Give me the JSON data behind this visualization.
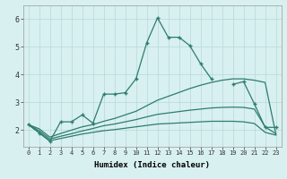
{
  "xlabel": "Humidex (Indice chaleur)",
  "x_values": [
    0,
    1,
    2,
    3,
    4,
    5,
    6,
    7,
    8,
    9,
    10,
    11,
    12,
    13,
    14,
    15,
    16,
    17,
    18,
    19,
    20,
    21,
    22,
    23
  ],
  "line_main": [
    2.2,
    1.9,
    1.6,
    2.3,
    2.3,
    2.55,
    2.25,
    3.3,
    3.3,
    3.35,
    3.85,
    5.15,
    6.05,
    5.35,
    5.35,
    5.05,
    4.4,
    3.85,
    null,
    3.65,
    3.75,
    2.95,
    2.1,
    2.1
  ],
  "line_smooth1": [
    2.2,
    2.05,
    1.75,
    1.88,
    2.0,
    2.12,
    2.2,
    2.32,
    2.42,
    2.55,
    2.68,
    2.88,
    3.08,
    3.22,
    3.36,
    3.5,
    3.62,
    3.72,
    3.8,
    3.85,
    3.85,
    3.8,
    3.72,
    1.85
  ],
  "line_smooth2": [
    2.2,
    1.98,
    1.68,
    1.78,
    1.87,
    1.97,
    2.06,
    2.16,
    2.22,
    2.3,
    2.38,
    2.48,
    2.57,
    2.62,
    2.67,
    2.72,
    2.76,
    2.8,
    2.82,
    2.83,
    2.82,
    2.76,
    2.12,
    1.87
  ],
  "line_smooth3": [
    2.2,
    1.92,
    1.62,
    1.7,
    1.78,
    1.86,
    1.92,
    1.98,
    2.02,
    2.07,
    2.12,
    2.17,
    2.22,
    2.24,
    2.26,
    2.28,
    2.3,
    2.32,
    2.32,
    2.32,
    2.3,
    2.24,
    1.92,
    1.82
  ],
  "color": "#2d7d6e",
  "bg_color": "#d8f0f0",
  "grid_color": "#b8d8d8",
  "ylim": [
    1.4,
    6.5
  ],
  "xlim": [
    -0.5,
    23.5
  ],
  "yticks": [
    2,
    3,
    4,
    5,
    6
  ],
  "xticks": [
    0,
    1,
    2,
    3,
    4,
    5,
    6,
    7,
    8,
    9,
    10,
    11,
    12,
    13,
    14,
    15,
    16,
    17,
    18,
    19,
    20,
    21,
    22,
    23
  ]
}
